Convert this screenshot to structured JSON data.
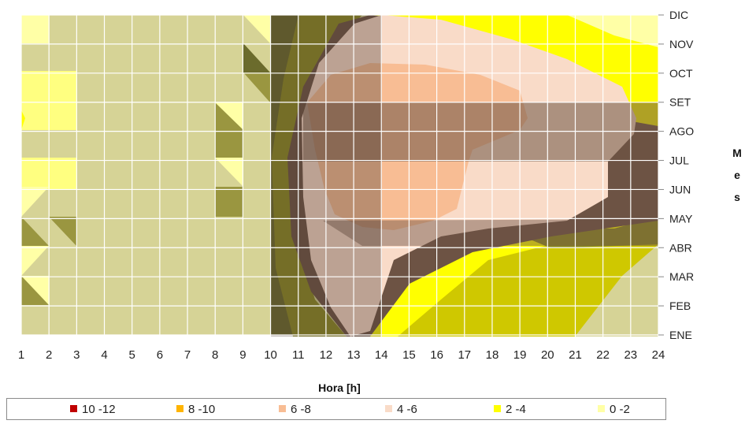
{
  "chart_data": {
    "type": "heatmap",
    "subtype": "contour",
    "xlabel": "Hora [h]",
    "ylabel": "Mes",
    "x_ticks": [
      "1",
      "2",
      "3",
      "4",
      "5",
      "6",
      "7",
      "8",
      "9",
      "10",
      "11",
      "12",
      "13",
      "14",
      "15",
      "16",
      "17",
      "18",
      "19",
      "20",
      "21",
      "22",
      "23",
      "24"
    ],
    "y_ticks": [
      "ENE",
      "FEB",
      "MAR",
      "ABR",
      "MAY",
      "JUN",
      "JUL",
      "AGO",
      "SET",
      "OCT",
      "NOV",
      "DIC"
    ],
    "legend_position": "bottom",
    "grid": true,
    "legend": [
      {
        "label": "10 -12",
        "color": "#c00000"
      },
      {
        "label": "8 -10",
        "color": "#ffb400"
      },
      {
        "label": "6 -8",
        "color": "#f8bd94"
      },
      {
        "label": "4 -6",
        "color": "#f9dbc8"
      },
      {
        "label": "2 -4",
        "color": "#ffff00"
      },
      {
        "label": "0 -2",
        "color": "#ffffa6"
      }
    ],
    "band_colors": {
      "base": "#d6d396",
      "dark_edge": "#6b6b2c",
      "olive": "#8c8a22",
      "khaki": "#cfc800",
      "brown_shadow": "#6d5344",
      "low_yellow": "#ffff00",
      "pale_yellow": "#ffffa6",
      "peach_light": "#f9dbc8",
      "peach": "#f8bd94"
    },
    "values": [
      [
        1,
        1,
        1,
        1,
        1,
        1,
        1,
        1,
        1,
        1,
        3,
        3,
        3,
        3,
        3,
        2,
        2,
        2,
        2,
        2,
        2,
        2,
        1,
        1
      ],
      [
        1,
        1,
        1,
        1,
        1,
        1,
        1,
        1,
        1,
        1,
        3,
        3,
        4,
        4,
        4,
        3,
        3,
        2,
        2,
        2,
        2,
        2,
        2,
        1
      ],
      [
        1,
        1,
        1,
        1,
        1,
        1,
        1,
        1,
        1,
        1,
        3,
        4,
        4,
        4,
        5,
        4,
        3,
        3,
        2,
        2,
        2,
        2,
        2,
        1
      ],
      [
        1,
        1,
        1,
        1,
        1,
        1,
        1,
        1,
        1,
        1,
        3,
        4,
        5,
        5,
        5,
        5,
        4,
        4,
        3,
        3,
        2,
        2,
        2,
        2
      ],
      [
        1,
        1,
        1,
        1,
        1,
        1,
        1,
        1,
        1,
        1,
        3,
        4,
        6,
        6,
        6,
        6,
        5,
        5,
        4,
        4,
        4,
        3,
        3,
        2
      ],
      [
        2,
        2,
        1,
        1,
        1,
        1,
        1,
        1,
        1,
        1,
        3,
        5,
        6,
        7,
        7,
        7,
        6,
        6,
        5,
        5,
        5,
        5,
        3,
        2
      ],
      [
        2,
        2,
        1,
        1,
        1,
        1,
        1,
        1,
        1,
        1,
        3,
        5,
        6,
        6,
        6,
        6,
        6,
        6,
        5,
        5,
        5,
        5,
        3,
        3
      ],
      [
        2,
        2,
        1,
        1,
        1,
        1,
        1,
        1,
        1,
        1,
        3,
        5,
        6,
        7,
        7,
        7,
        6,
        6,
        6,
        5,
        5,
        5,
        4,
        3
      ],
      [
        3,
        2,
        2,
        1,
        1,
        1,
        1,
        1,
        1,
        1,
        3,
        5,
        6,
        6,
        6,
        6,
        6,
        6,
        6,
        5,
        5,
        5,
        5,
        3
      ],
      [
        2,
        2,
        2,
        1,
        1,
        1,
        1,
        1,
        1,
        1,
        3,
        4,
        6,
        6,
        6,
        6,
        6,
        6,
        5,
        5,
        4,
        4,
        3,
        3
      ],
      [
        1,
        1,
        1,
        1,
        1,
        1,
        1,
        1,
        1,
        1,
        3,
        4,
        4,
        5,
        5,
        5,
        5,
        4,
        4,
        3,
        3,
        3,
        3,
        3
      ],
      [
        1,
        1,
        1,
        1,
        1,
        1,
        1,
        1,
        1,
        1,
        3,
        3,
        4,
        5,
        5,
        5,
        4,
        4,
        4,
        3,
        3,
        3,
        3,
        3
      ]
    ]
  }
}
